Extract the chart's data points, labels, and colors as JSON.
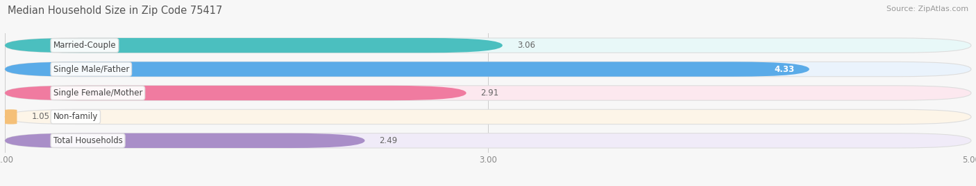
{
  "title": "Median Household Size in Zip Code 75417",
  "source": "Source: ZipAtlas.com",
  "categories": [
    "Married-Couple",
    "Single Male/Father",
    "Single Female/Mother",
    "Non-family",
    "Total Households"
  ],
  "values": [
    3.06,
    4.33,
    2.91,
    1.05,
    2.49
  ],
  "bar_colors": [
    "#4BBFBF",
    "#5AABE8",
    "#F07BA0",
    "#F5C078",
    "#A98EC8"
  ],
  "bar_bg_colors": [
    "#E8F8F8",
    "#EAF3FC",
    "#FCE8EF",
    "#FDF5E8",
    "#F0EBF8"
  ],
  "xlim_data": [
    0.0,
    5.0
  ],
  "xmin": 1.0,
  "xmax": 5.0,
  "xticks": [
    1.0,
    3.0,
    5.0
  ],
  "xtick_labels": [
    "1.00",
    "3.00",
    "5.00"
  ],
  "title_fontsize": 10.5,
  "source_fontsize": 8,
  "label_fontsize": 8.5,
  "value_fontsize": 8.5,
  "background_color": "#F7F7F7",
  "bar_height": 0.62,
  "bar_gap": 0.38
}
